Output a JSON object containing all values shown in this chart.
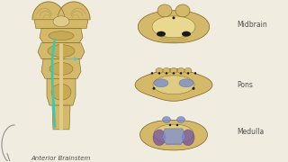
{
  "background_color": "#f0ede0",
  "brain_tan": "#d4b96a",
  "brain_dark_edge": "#7a6020",
  "brain_inner": "#c8aa55",
  "brain_mid_inner": "#b89840",
  "tract_color": "#3ec8b0",
  "arrow_color": "#50c8d8",
  "blue_lemniscus": "#8090c8",
  "blue_dark": "#5060a0",
  "dark_dot": "#1a1a1a",
  "purple_olive": "#7050a0",
  "purple_dark": "#503080",
  "text_color": "#505050",
  "label_anterior": "Anterior Brainstem",
  "label_midbrain": "Midbrain",
  "label_pons": "Pons",
  "label_medulla": "Medulla",
  "fontsize": 5
}
